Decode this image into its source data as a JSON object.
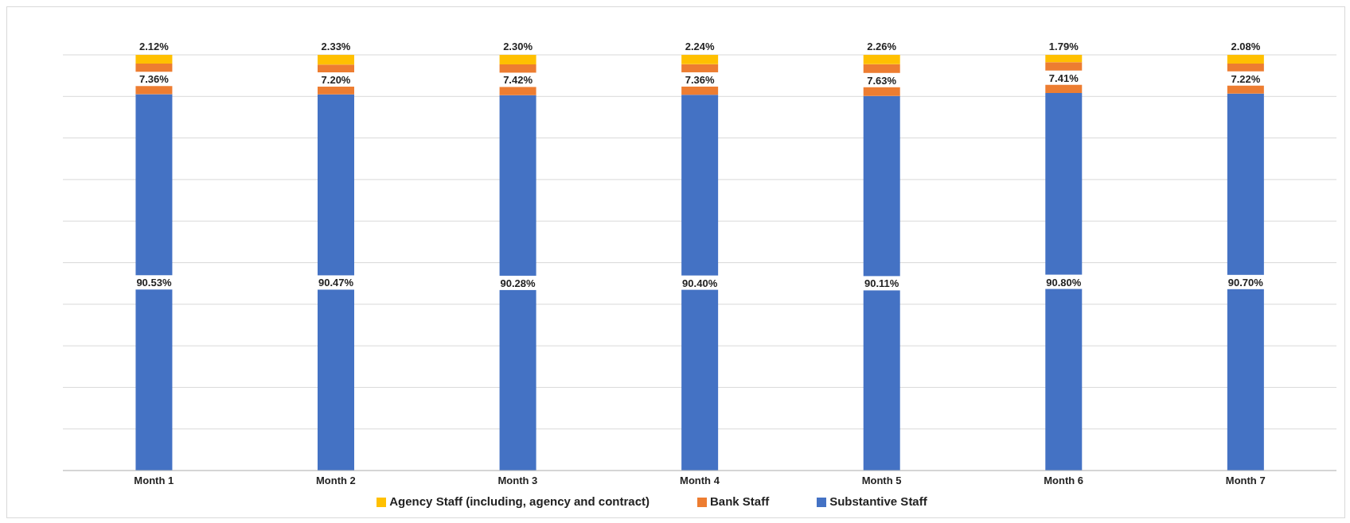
{
  "chart_data": {
    "type": "bar",
    "stacked": true,
    "categories": [
      "Month 1",
      "Month 2",
      "Month 3",
      "Month 4",
      "Month 5",
      "Month 6",
      "Month 7"
    ],
    "series": [
      {
        "name": "Substantive Staff",
        "color": "#4472c4",
        "values": [
          90.53,
          90.47,
          90.28,
          90.4,
          90.11,
          90.8,
          90.7
        ],
        "value_labels": [
          "90.53%",
          "90.47%",
          "90.28%",
          "90.40%",
          "90.11%",
          "90.80%",
          "90.70%"
        ]
      },
      {
        "name": "Bank Staff",
        "color": "#ed7d31",
        "values": [
          7.36,
          7.2,
          7.42,
          7.36,
          7.63,
          7.41,
          7.22
        ],
        "value_labels": [
          "7.36%",
          "7.20%",
          "7.42%",
          "7.36%",
          "7.63%",
          "7.41%",
          "7.22%"
        ]
      },
      {
        "name": "Agency Staff (including, agency and contract)",
        "color": "#ffc000",
        "values": [
          2.12,
          2.33,
          2.3,
          2.24,
          2.26,
          1.79,
          2.08
        ],
        "value_labels": [
          "2.12%",
          "2.33%",
          "2.30%",
          "2.24%",
          "2.26%",
          "1.79%",
          "2.08%"
        ]
      }
    ],
    "ylim": [
      0,
      100
    ],
    "yticks": [
      {
        "value": 0,
        "label": null
      },
      {
        "value": 10,
        "label": null
      },
      {
        "value": 20,
        "label": null
      },
      {
        "value": 30,
        "label": null
      },
      {
        "value": 40,
        "label": null
      },
      {
        "value": 50,
        "label": null
      },
      {
        "value": 60,
        "label": null
      },
      {
        "value": 70,
        "label": null
      },
      {
        "value": 80,
        "label": null
      },
      {
        "value": 90,
        "label": null
      },
      {
        "value": 100,
        "label": null
      }
    ],
    "tick_labels": "x",
    "grid": "y",
    "legend": "bottom"
  }
}
